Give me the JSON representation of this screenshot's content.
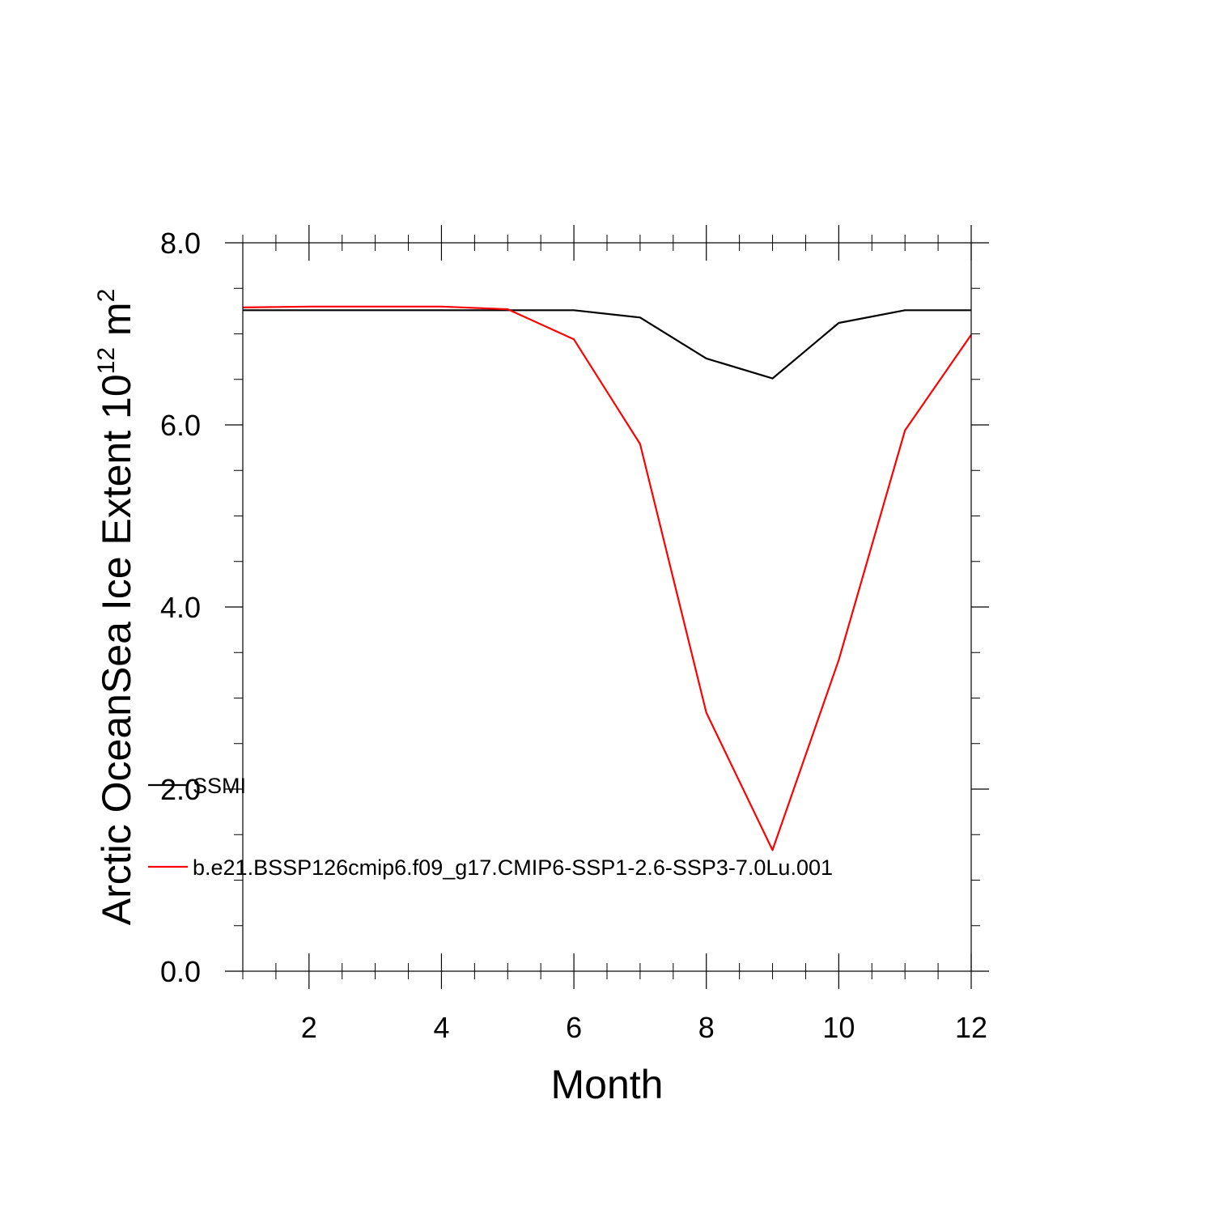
{
  "chart_data": {
    "type": "line",
    "title": "",
    "xlabel": "Month",
    "ylabel": {
      "main": "Arctic OceanSea Ice Extent 10",
      "superscript": "12",
      "unit": " m",
      "unit_superscript": "2"
    },
    "xlim": [
      1,
      12
    ],
    "ylim": [
      0,
      8
    ],
    "x_major_ticks": [
      2,
      4,
      6,
      8,
      10,
      12
    ],
    "x_major_tick_labels": [
      "2",
      "4",
      "6",
      "8",
      "10",
      "12"
    ],
    "x_minor_ticks": [
      1,
      1.5,
      2.5,
      3,
      3.5,
      4.5,
      5,
      5.5,
      6.5,
      7,
      7.5,
      8.5,
      9,
      9.5,
      10.5,
      11,
      11.5
    ],
    "y_major_ticks": [
      0,
      2,
      4,
      6,
      8
    ],
    "y_major_tick_labels": [
      "0.0",
      "2.0",
      "4.0",
      "6.0",
      "8.0"
    ],
    "y_minor_ticks": [
      0.5,
      1,
      1.5,
      2.5,
      3,
      3.5,
      4.5,
      5,
      5.5,
      6.5,
      7,
      7.5
    ],
    "grid": false,
    "legend_placement": "lower-left inside plot",
    "x": [
      1,
      2,
      3,
      4,
      5,
      6,
      7,
      8,
      9,
      10,
      11,
      12
    ],
    "series": [
      {
        "name": "SSMI",
        "color": "#000000",
        "values": [
          7.26,
          7.26,
          7.26,
          7.26,
          7.26,
          7.26,
          7.18,
          6.73,
          6.51,
          7.12,
          7.26,
          7.26
        ]
      },
      {
        "name": "b.e21.BSSP126cmip6.f09_g17.CMIP6-SSP1-2.6-SSP3-7.0Lu.001",
        "color": "#ff0000",
        "values": [
          7.29,
          7.3,
          7.3,
          7.3,
          7.27,
          6.94,
          5.79,
          2.84,
          1.33,
          3.42,
          5.94,
          6.99
        ]
      }
    ]
  }
}
